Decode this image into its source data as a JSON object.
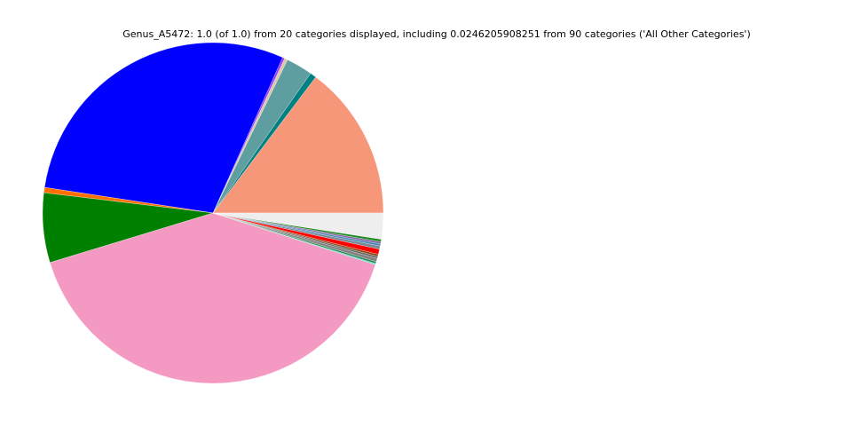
{
  "chart_data": {
    "type": "pie",
    "title": "Genus_A5472: 1.0 (of 1.0) from 20 categories displayed, including 0.0246205908251 from 90 categories ('All Other Categories')",
    "values": [
      0.147,
      0.006,
      0.025,
      0.003,
      0.002,
      0.293,
      0.005,
      0.066,
      0.404,
      0.001,
      0.002,
      0.003,
      0.002,
      0.002,
      0.005,
      0.003,
      0.002,
      0.002,
      0.0024,
      0.0246205908251
    ],
    "colors": [
      "#f7977a",
      "#008080",
      "#5f9ea0",
      "#d8c8a8",
      "#9b30ff",
      "#0000ff",
      "#ff6f00",
      "#008000",
      "#f49ac2",
      "#40e0d0",
      "#2e8b57",
      "#808080",
      "#696969",
      "#8b4513",
      "#ff0000",
      "#778899",
      "#4682b4",
      "#8064a2",
      "#228b22",
      "#eeeeee"
    ],
    "start_angle": 0,
    "counterclockwise": true
  }
}
